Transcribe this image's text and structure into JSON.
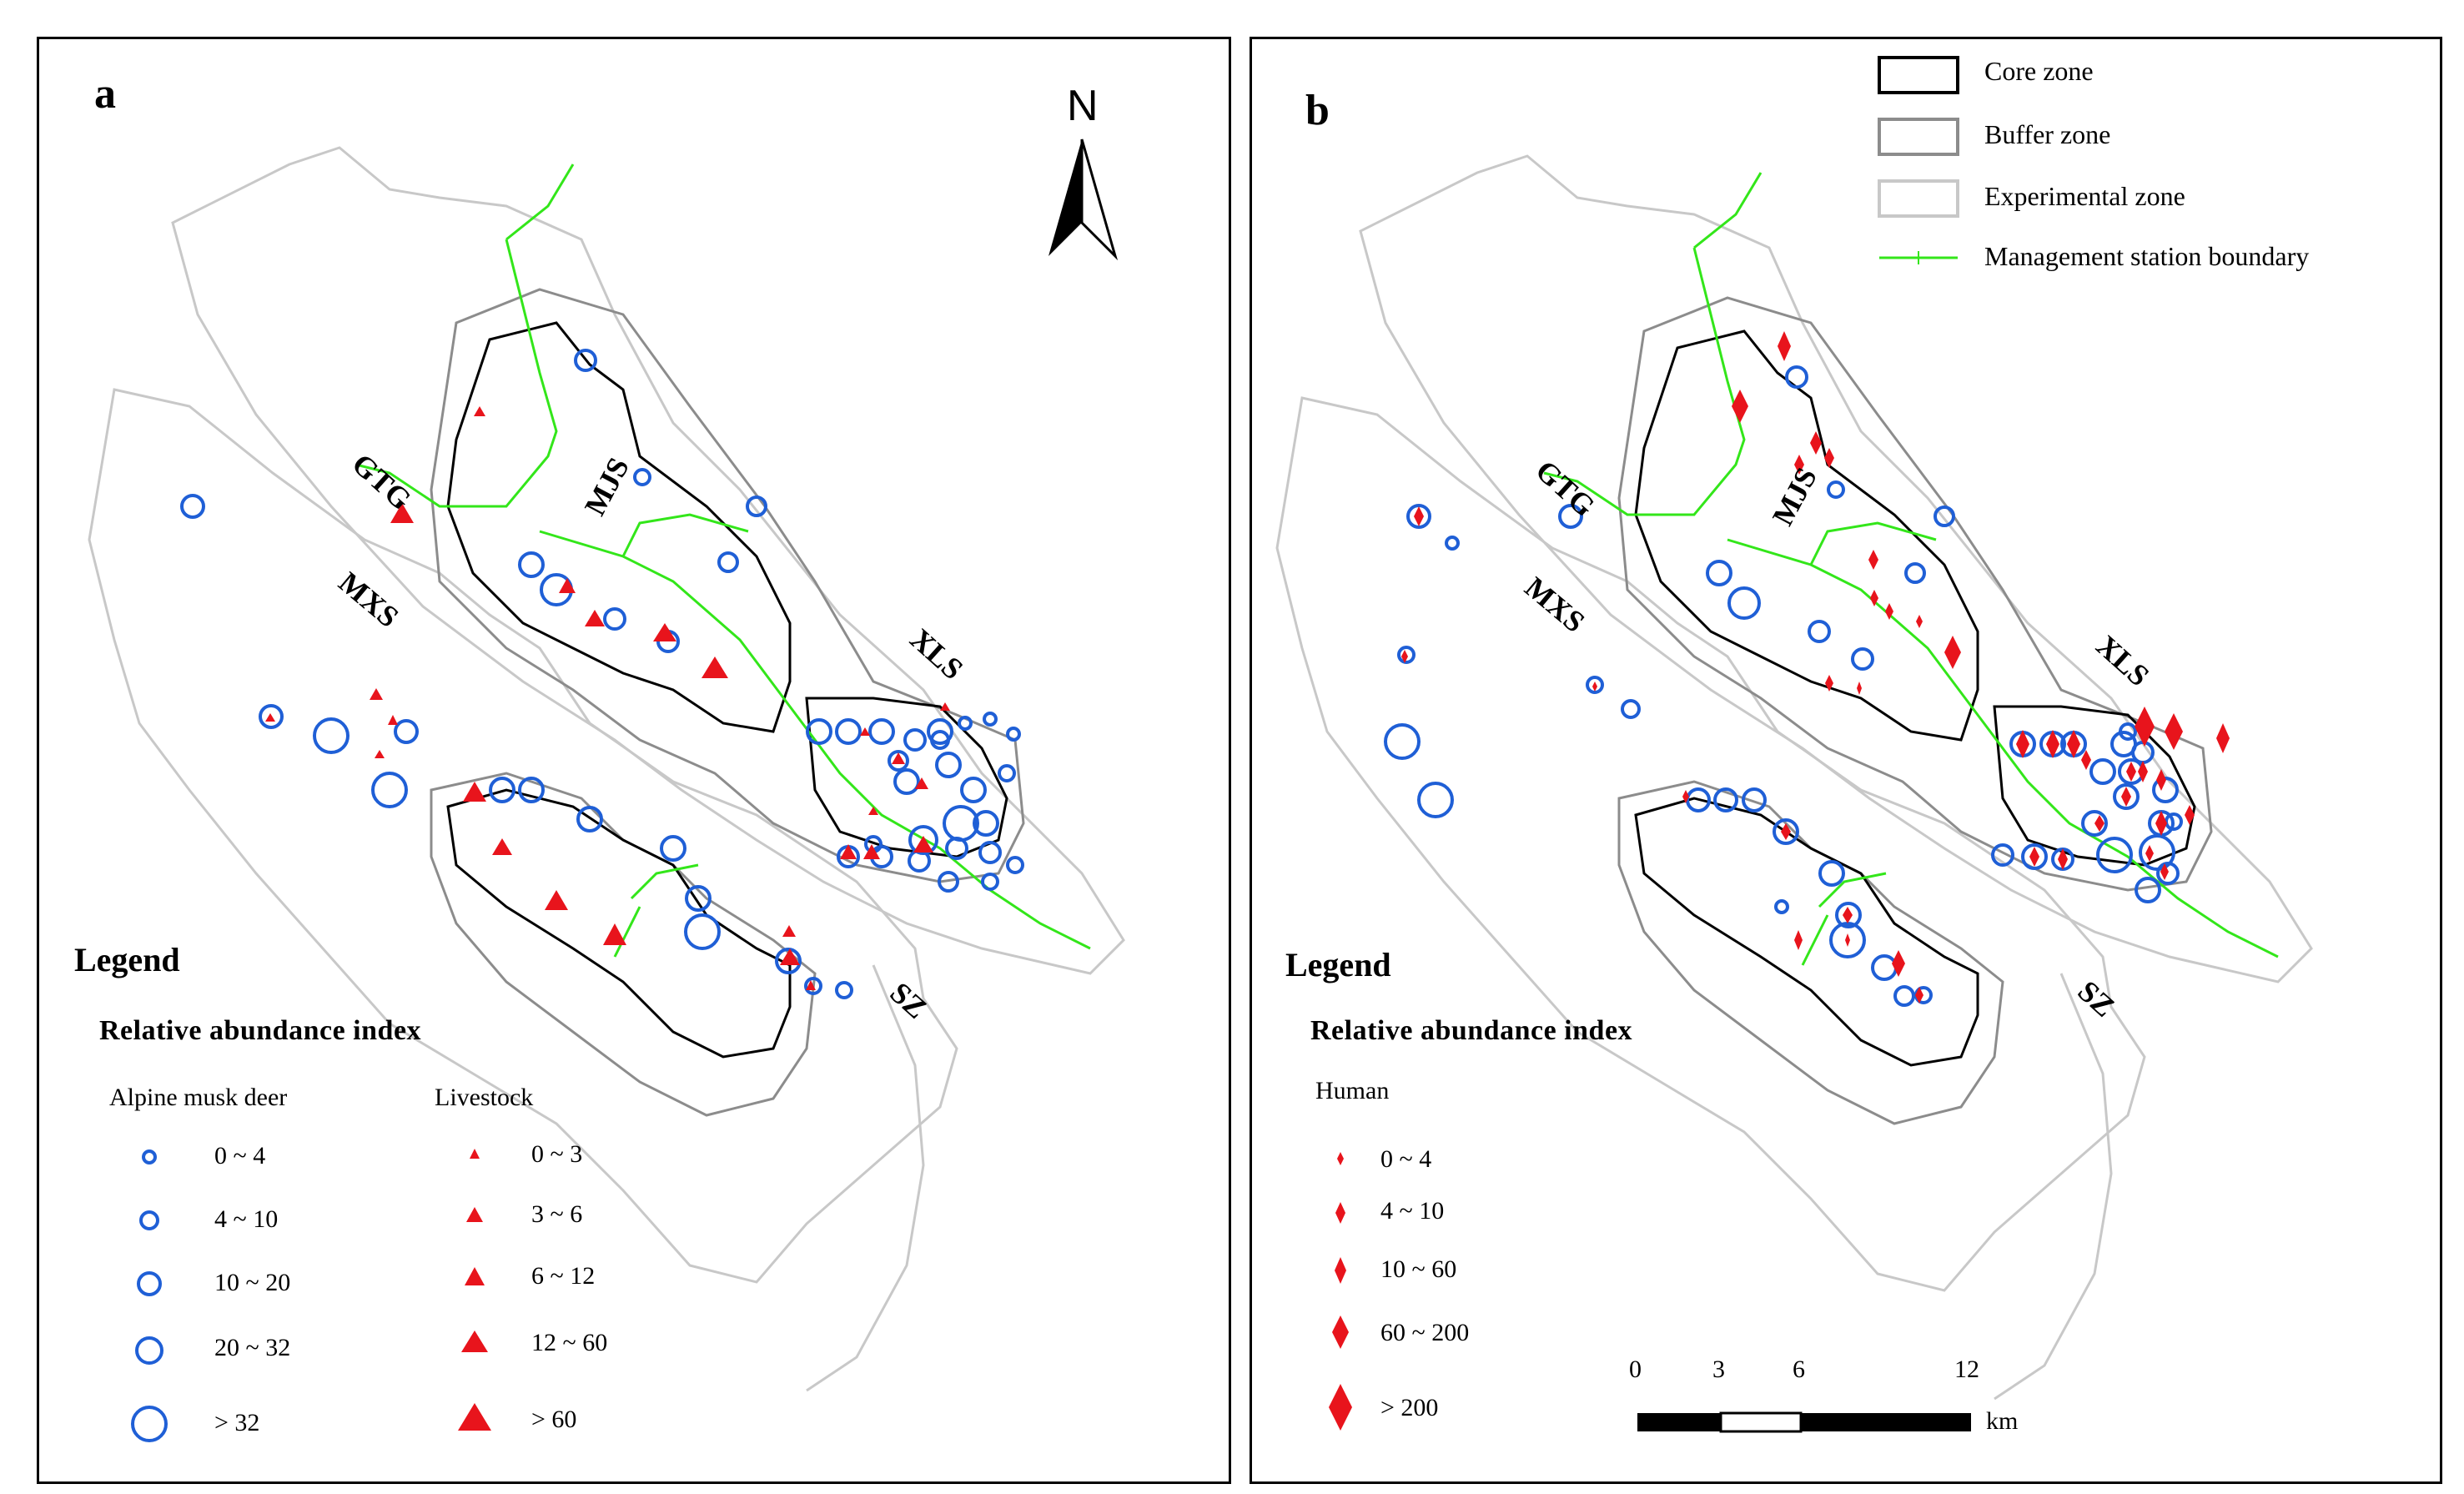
{
  "panel_a": {
    "letter": "a",
    "north_label": "N",
    "zone_labels": {
      "gtg": "GTG",
      "mjs": "MJS",
      "mxs": "MXS",
      "xls": "XLS",
      "sz": "SZ"
    },
    "legend": {
      "title": "Legend",
      "subtitle": "Relative  abundance index",
      "musk_deer": {
        "heading": "Alpine musk deer",
        "color": "#1f5fd6",
        "classes": [
          "0 ~ 4",
          "4 ~ 10",
          "10 ~ 20",
          "20 ~ 32",
          "> 32"
        ]
      },
      "livestock": {
        "heading": "Livestock",
        "color": "#e8141c",
        "classes": [
          "0 ~ 3",
          "3 ~ 6",
          "6 ~ 12",
          "12 ~ 60",
          "> 60"
        ]
      }
    }
  },
  "panel_b": {
    "letter": "b",
    "zone_labels": {
      "gtg": "GTG",
      "mjs": "MJS",
      "mxs": "MXS",
      "xls": "XLS",
      "sz": "SZ"
    },
    "map_legend": {
      "core_zone": "Core zone",
      "buffer_zone": "Buffer zone",
      "experimental_zone": "Experimental zone",
      "station_boundary": "Management station boundary",
      "colors": {
        "core": "#000000",
        "buffer": "#8c8c8c",
        "experimental": "#c8c8c8",
        "station": "#33e61a"
      }
    },
    "legend": {
      "title": "Legend",
      "subtitle": "Relative  abundance index",
      "human": {
        "heading": "Human",
        "color": "#e8141c",
        "classes": [
          "0 ~ 4",
          "4 ~ 10",
          "10 ~ 60",
          "60 ~ 200",
          "> 200"
        ]
      }
    },
    "scale_bar": {
      "ticks": [
        "0",
        "3",
        "6",
        "12"
      ],
      "unit": "km"
    }
  }
}
